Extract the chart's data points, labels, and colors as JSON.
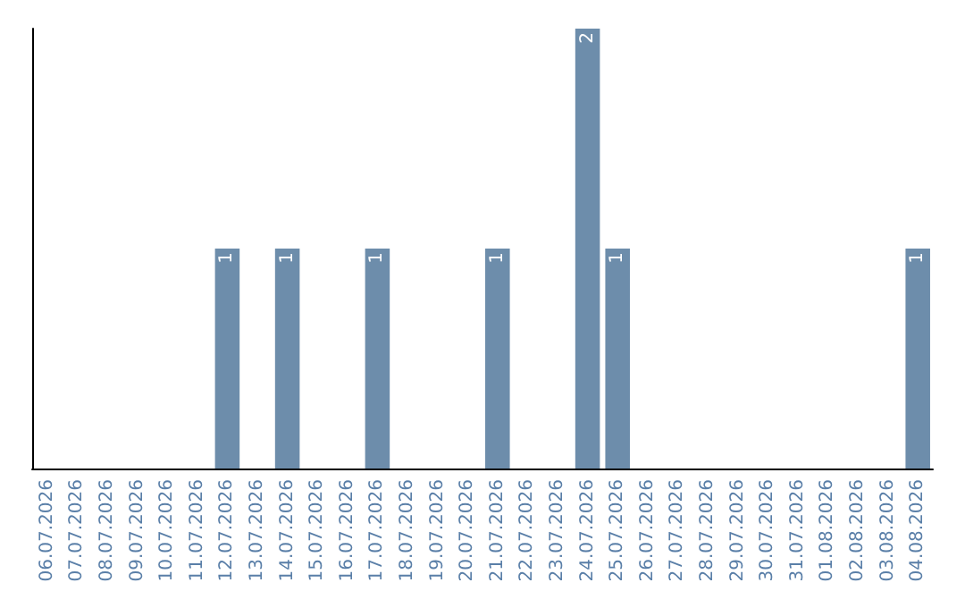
{
  "chart_data": {
    "type": "bar",
    "categories": [
      "06.07.2026",
      "07.07.2026",
      "08.07.2026",
      "09.07.2026",
      "10.07.2026",
      "11.07.2026",
      "12.07.2026",
      "13.07.2026",
      "14.07.2026",
      "15.07.2026",
      "16.07.2026",
      "17.07.2026",
      "18.07.2026",
      "19.07.2026",
      "20.07.2026",
      "21.07.2026",
      "22.07.2026",
      "23.07.2026",
      "24.07.2026",
      "25.07.2026",
      "26.07.2026",
      "27.07.2026",
      "28.07.2026",
      "29.07.2026",
      "30.07.2026",
      "31.07.2026",
      "01.08.2026",
      "02.08.2026",
      "03.08.2026",
      "04.08.2026"
    ],
    "values": [
      0,
      0,
      0,
      0,
      0,
      0,
      1,
      0,
      1,
      0,
      0,
      1,
      0,
      0,
      0,
      1,
      0,
      0,
      2,
      1,
      0,
      0,
      0,
      0,
      0,
      0,
      0,
      0,
      0,
      1
    ],
    "value_labels": [
      null,
      null,
      null,
      null,
      null,
      null,
      "1",
      null,
      "1",
      null,
      null,
      "1",
      null,
      null,
      null,
      "1",
      null,
      null,
      "2",
      "1",
      null,
      null,
      null,
      null,
      null,
      null,
      null,
      null,
      null,
      "1"
    ],
    "color": "#6d8dab",
    "grid": false,
    "tick_labels": "x"
  }
}
